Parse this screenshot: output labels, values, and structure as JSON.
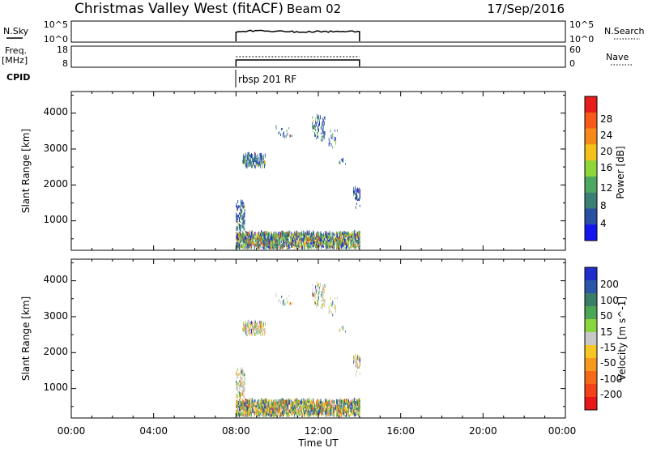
{
  "header": {
    "station": "Christmas Valley West (fitACF)",
    "beam": "Beam 02",
    "date": "17/Sep/2016"
  },
  "nsky_panel": {
    "left_label": "N.Sky",
    "right_label": "N.Search",
    "left_ticks": [
      "10^5",
      "10^0"
    ],
    "right_ticks": [
      "10^5",
      "10^0"
    ]
  },
  "freq_panel": {
    "left_label_line1": "Freq.",
    "left_label_line2": "[MHz]",
    "right_label": "Nave",
    "left_ticks": [
      "18",
      "8"
    ],
    "right_ticks": [
      "60",
      "0"
    ]
  },
  "cpid": {
    "label": "CPID",
    "program": "rbsp 201 RF"
  },
  "x_axis": {
    "label": "Time UT",
    "ticks": [
      "00:00",
      "04:00",
      "08:00",
      "12:00",
      "16:00",
      "20:00",
      "00:00"
    ]
  },
  "chart_data": [
    {
      "type": "heatmap",
      "name": "power",
      "ylabel": "Slant Range [km]",
      "y_ticks": [
        "1000",
        "2000",
        "3000",
        "4000"
      ],
      "colorbar_label": "Power [dB]",
      "colorbar_ticks": [
        "4",
        "8",
        "12",
        "16",
        "20",
        "24",
        "28"
      ],
      "colorbar_colors": [
        "#1515ee",
        "#2b4fa3",
        "#3c8075",
        "#4da862",
        "#8fd63a",
        "#f2c21b",
        "#f58a1a",
        "#f55a1a",
        "#e81c1c"
      ],
      "xlim_hours": [
        0,
        24
      ],
      "ylim_km": [
        180,
        4600
      ],
      "data_window_hours": [
        8,
        14
      ]
    },
    {
      "type": "heatmap",
      "name": "velocity",
      "ylabel": "Slant Range [km]",
      "y_ticks": [
        "1000",
        "2000",
        "3000",
        "4000"
      ],
      "colorbar_label": "Velocity [m s^-1]",
      "colorbar_ticks": [
        "200",
        "100",
        "50",
        "15",
        "-15",
        "-50",
        "-100",
        "-200"
      ],
      "colorbar_colors": [
        "#1f2fcc",
        "#2c56a8",
        "#3a7d68",
        "#4da655",
        "#8bd63e",
        "#c8c8c8",
        "#f5c624",
        "#f59a1e",
        "#f56a1a",
        "#f2421a",
        "#e81818"
      ],
      "xlim_hours": [
        0,
        24
      ],
      "ylim_km": [
        180,
        4600
      ],
      "data_window_hours": [
        8,
        14
      ]
    }
  ]
}
